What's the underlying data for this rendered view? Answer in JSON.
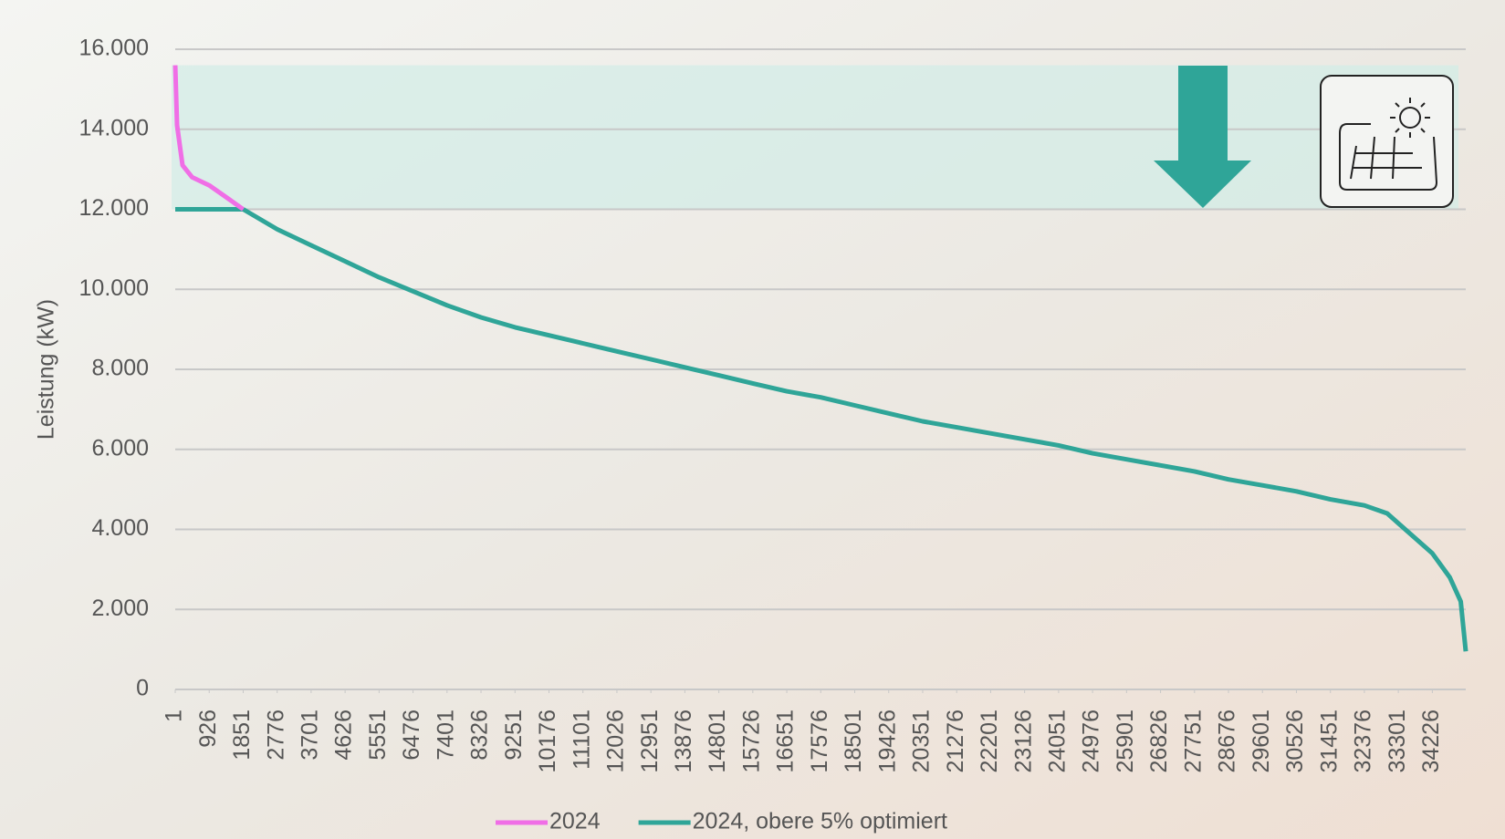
{
  "chart_data": {
    "type": "line",
    "y_label": "Leistung (kW)",
    "x": [
      1,
      50,
      200,
      463,
      926,
      1389,
      1851,
      2776,
      3701,
      4626,
      5551,
      6476,
      7401,
      8326,
      9251,
      10176,
      11101,
      12026,
      12951,
      13876,
      14801,
      15726,
      16651,
      17576,
      18501,
      19426,
      20351,
      21276,
      22201,
      23126,
      24051,
      24976,
      25901,
      26826,
      27751,
      28676,
      29601,
      30526,
      31451,
      32376,
      33000,
      33301,
      34226,
      34700,
      35000,
      35136
    ],
    "series": [
      {
        "name": "2024",
        "color": "#f06ee6",
        "values": [
          15600,
          14100,
          13100,
          12800,
          12600,
          12300,
          12000,
          null,
          null,
          null,
          null,
          null,
          null,
          null,
          null,
          null,
          null,
          null,
          null,
          null,
          null,
          null,
          null,
          null,
          null,
          null,
          null,
          null,
          null,
          null,
          null,
          null,
          null,
          null,
          null,
          null,
          null,
          null,
          null,
          null,
          null,
          null,
          null,
          null,
          null,
          null
        ]
      },
      {
        "name": "2024, obere 5% optimiert",
        "color": "#2fa598",
        "values": [
          12000,
          12000,
          12000,
          12000,
          12000,
          12000,
          12000,
          11500,
          11100,
          10700,
          10300,
          9950,
          9600,
          9300,
          9050,
          8850,
          8650,
          8450,
          8250,
          8050,
          7850,
          7650,
          7450,
          7300,
          7100,
          6900,
          6700,
          6550,
          6400,
          6250,
          6100,
          5900,
          5750,
          5600,
          5450,
          5250,
          5100,
          4950,
          4750,
          4600,
          4400,
          4150,
          3400,
          2800,
          2200,
          950
        ]
      }
    ],
    "xlim": [
      1,
      35136
    ],
    "xticks": [
      1,
      926,
      1851,
      2776,
      3701,
      4626,
      5551,
      6476,
      7401,
      8326,
      9251,
      10176,
      11101,
      12026,
      12951,
      13876,
      14801,
      15726,
      16651,
      17576,
      18501,
      19426,
      20351,
      21276,
      22201,
      23126,
      24051,
      24976,
      25901,
      26826,
      27751,
      28676,
      29601,
      30526,
      31451,
      32376,
      33301,
      34226
    ],
    "ylim": [
      0,
      16000
    ],
    "yticks": [
      0,
      {
        "value": 2000,
        "label": "2.000"
      },
      {
        "value": 4000,
        "label": "4.000"
      },
      {
        "value": 6000,
        "label": "6.000"
      },
      {
        "value": 8000,
        "label": "8.000"
      },
      {
        "value": 10000,
        "label": "10.000"
      },
      {
        "value": 12000,
        "label": "12.000"
      },
      {
        "value": 14000,
        "label": "14.000"
      },
      {
        "value": 16000,
        "label": "16.000"
      }
    ],
    "grid": true
  }
}
